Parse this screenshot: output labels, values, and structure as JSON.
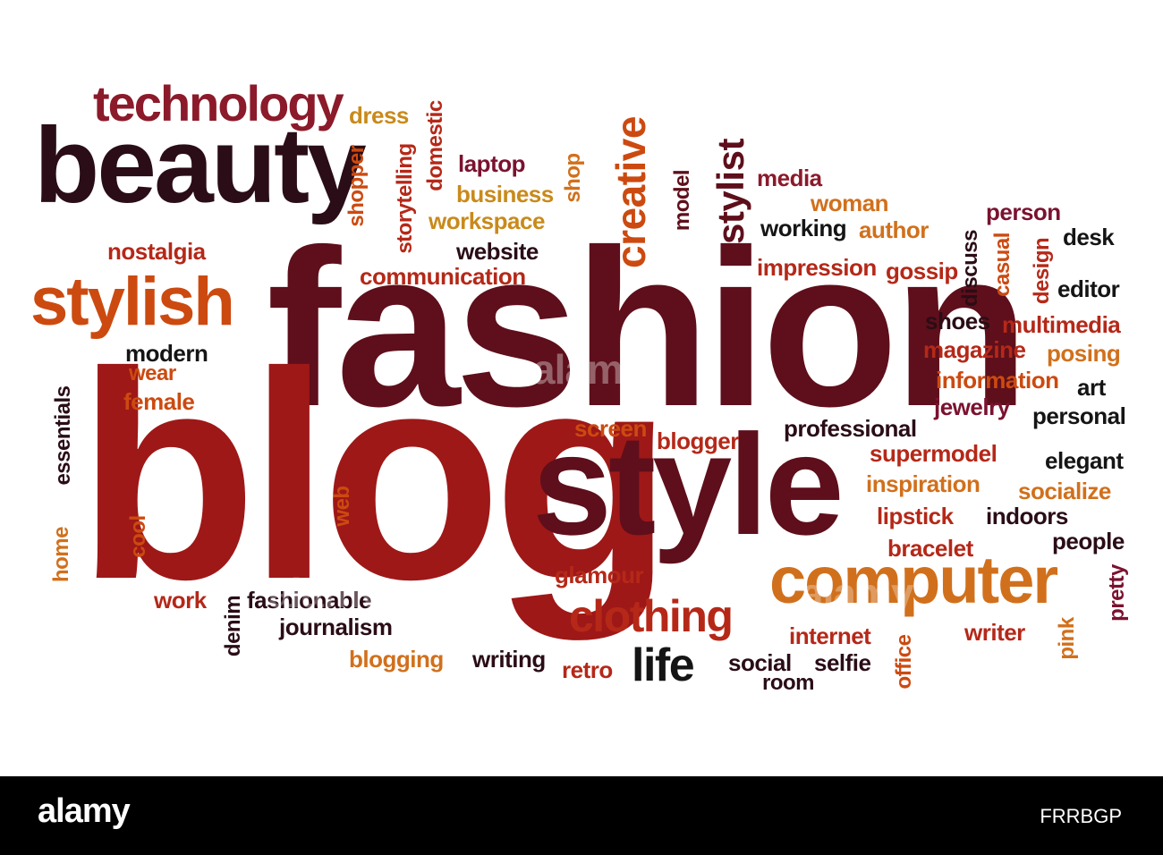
{
  "colors": {
    "dark": "#2a0d16",
    "deep_maroon": "#5e0f1b",
    "maroon": "#8b1a2a",
    "red": "#9e1818",
    "brick": "#b52818",
    "orange": "#cc4a10",
    "amber": "#d1701c",
    "gold": "#c98a1b",
    "wine": "#7a1230",
    "black": "#151515",
    "footer_bg": "#000000",
    "footer_text": "#ffffff"
  },
  "words": [
    {
      "text": "fashion",
      "color": "deep_maroon"
    },
    {
      "text": "blog",
      "color": "red"
    },
    {
      "text": "style",
      "color": "deep_maroon"
    },
    {
      "text": "beauty",
      "color": "dark"
    },
    {
      "text": "technology",
      "color": "maroon"
    },
    {
      "text": "stylish",
      "color": "orange"
    },
    {
      "text": "computer",
      "color": "amber"
    },
    {
      "text": "creative",
      "color": "orange"
    },
    {
      "text": "stylist",
      "color": "deep_maroon"
    },
    {
      "text": "clothing",
      "color": "brick"
    },
    {
      "text": "life",
      "color": "black"
    },
    {
      "text": "dress",
      "color": "gold"
    },
    {
      "text": "shopper",
      "color": "orange"
    },
    {
      "text": "storytelling",
      "color": "brick"
    },
    {
      "text": "domestic",
      "color": "brick"
    },
    {
      "text": "laptop",
      "color": "wine"
    },
    {
      "text": "business",
      "color": "gold"
    },
    {
      "text": "workspace",
      "color": "gold"
    },
    {
      "text": "shop",
      "color": "amber"
    },
    {
      "text": "model",
      "color": "deep_maroon"
    },
    {
      "text": "website",
      "color": "dark"
    },
    {
      "text": "communication",
      "color": "brick"
    },
    {
      "text": "nostalgia",
      "color": "brick"
    },
    {
      "text": "media",
      "color": "maroon"
    },
    {
      "text": "woman",
      "color": "amber"
    },
    {
      "text": "working",
      "color": "black"
    },
    {
      "text": "author",
      "color": "amber"
    },
    {
      "text": "impression",
      "color": "brick"
    },
    {
      "text": "gossip",
      "color": "brick"
    },
    {
      "text": "person",
      "color": "wine"
    },
    {
      "text": "desk",
      "color": "black"
    },
    {
      "text": "discuss",
      "color": "dark"
    },
    {
      "text": "casual",
      "color": "orange"
    },
    {
      "text": "design",
      "color": "brick"
    },
    {
      "text": "editor",
      "color": "black"
    },
    {
      "text": "shoes",
      "color": "dark"
    },
    {
      "text": "multimedia",
      "color": "brick"
    },
    {
      "text": "magazine",
      "color": "brick"
    },
    {
      "text": "posing",
      "color": "amber"
    },
    {
      "text": "information",
      "color": "orange"
    },
    {
      "text": "art",
      "color": "black"
    },
    {
      "text": "jewelry",
      "color": "wine"
    },
    {
      "text": "personal",
      "color": "black"
    },
    {
      "text": "modern",
      "color": "black"
    },
    {
      "text": "wear",
      "color": "orange"
    },
    {
      "text": "female",
      "color": "orange"
    },
    {
      "text": "essentials",
      "color": "dark"
    },
    {
      "text": "cool",
      "color": "orange"
    },
    {
      "text": "web",
      "color": "orange"
    },
    {
      "text": "home",
      "color": "amber"
    },
    {
      "text": "screen",
      "color": "orange"
    },
    {
      "text": "blogger",
      "color": "brick"
    },
    {
      "text": "professional",
      "color": "dark"
    },
    {
      "text": "supermodel",
      "color": "brick"
    },
    {
      "text": "elegant",
      "color": "black"
    },
    {
      "text": "inspiration",
      "color": "amber"
    },
    {
      "text": "socialize",
      "color": "amber"
    },
    {
      "text": "lipstick",
      "color": "brick"
    },
    {
      "text": "indoors",
      "color": "dark"
    },
    {
      "text": "bracelet",
      "color": "brick"
    },
    {
      "text": "people",
      "color": "dark"
    },
    {
      "text": "pretty",
      "color": "wine"
    },
    {
      "text": "glamour",
      "color": "brick"
    },
    {
      "text": "work",
      "color": "brick"
    },
    {
      "text": "denim",
      "color": "dark"
    },
    {
      "text": "fashionable",
      "color": "dark"
    },
    {
      "text": "journalism",
      "color": "dark"
    },
    {
      "text": "blogging",
      "color": "amber"
    },
    {
      "text": "writing",
      "color": "dark"
    },
    {
      "text": "retro",
      "color": "brick"
    },
    {
      "text": "social",
      "color": "dark"
    },
    {
      "text": "room",
      "color": "dark"
    },
    {
      "text": "selfie",
      "color": "dark"
    },
    {
      "text": "internet",
      "color": "brick"
    },
    {
      "text": "office",
      "color": "orange"
    },
    {
      "text": "writer",
      "color": "brick"
    },
    {
      "text": "pink",
      "color": "amber"
    }
  ],
  "footer": {
    "brand": "alamy",
    "image_code": "FRRBGP",
    "watermark": "alamy"
  }
}
